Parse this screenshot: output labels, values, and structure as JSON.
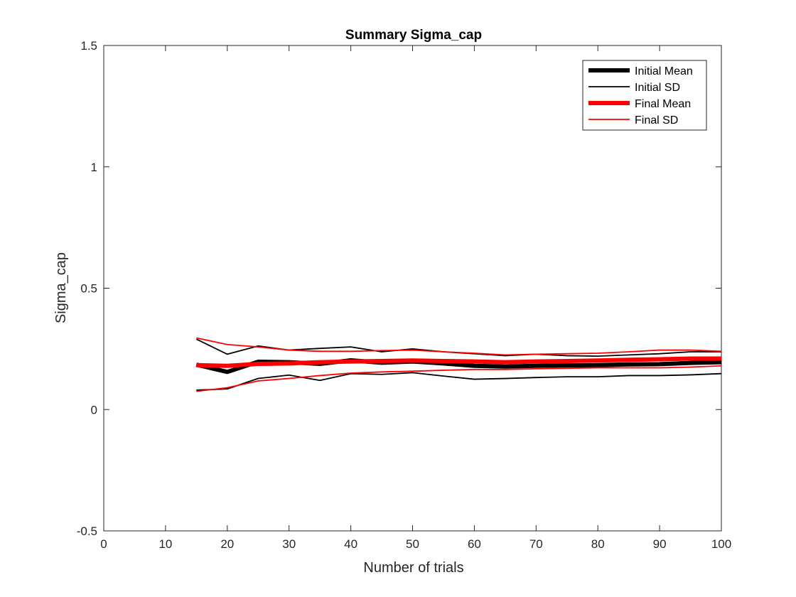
{
  "chart_data": {
    "type": "line",
    "title": "Summary Sigma_cap",
    "xlabel": "Number of trials",
    "ylabel": "Sigma_cap",
    "xlim": [
      0,
      100
    ],
    "ylim": [
      -0.5,
      1.5
    ],
    "xticks": [
      "0",
      "10",
      "20",
      "30",
      "40",
      "50",
      "60",
      "70",
      "80",
      "90",
      "100"
    ],
    "yticks": [
      "-0.5",
      "0",
      "0.5",
      "1",
      "1.5"
    ],
    "grid": false,
    "legend_position": "top-right",
    "x": [
      15,
      20,
      25,
      30,
      35,
      40,
      45,
      50,
      55,
      60,
      65,
      70,
      75,
      80,
      85,
      90,
      95,
      100
    ],
    "series": [
      {
        "name": "Initial Mean",
        "color": "#000000",
        "style": "thick",
        "values": [
          0.185,
          0.155,
          0.197,
          0.195,
          0.188,
          0.203,
          0.193,
          0.198,
          0.19,
          0.18,
          0.177,
          0.18,
          0.182,
          0.183,
          0.186,
          0.187,
          0.192,
          0.195
        ]
      },
      {
        "name": "Initial SD",
        "color": "#000000",
        "style": "thin",
        "values": [
          0.29,
          0.228,
          0.262,
          0.245,
          0.252,
          0.258,
          0.238,
          0.25,
          0.238,
          0.23,
          0.222,
          0.228,
          0.222,
          0.22,
          0.225,
          0.23,
          0.238,
          0.238
        ]
      },
      {
        "name": "Initial SD",
        "color": "#000000",
        "style": "thin",
        "values": [
          0.08,
          0.085,
          0.128,
          0.142,
          0.12,
          0.148,
          0.145,
          0.152,
          0.138,
          0.125,
          0.128,
          0.132,
          0.135,
          0.135,
          0.14,
          0.14,
          0.143,
          0.148
        ]
      },
      {
        "name": "Final Mean",
        "color": "#ff0000",
        "style": "thick",
        "values": [
          0.183,
          0.18,
          0.188,
          0.19,
          0.195,
          0.198,
          0.2,
          0.202,
          0.2,
          0.198,
          0.195,
          0.198,
          0.2,
          0.202,
          0.205,
          0.207,
          0.21,
          0.21
        ]
      },
      {
        "name": "Final SD",
        "color": "#ff0000",
        "style": "thin",
        "values": [
          0.295,
          0.268,
          0.258,
          0.245,
          0.24,
          0.24,
          0.243,
          0.245,
          0.238,
          0.232,
          0.225,
          0.228,
          0.23,
          0.232,
          0.238,
          0.245,
          0.245,
          0.24
        ]
      },
      {
        "name": "Final SD",
        "color": "#ff0000",
        "style": "thin",
        "values": [
          0.075,
          0.09,
          0.118,
          0.128,
          0.14,
          0.15,
          0.155,
          0.158,
          0.162,
          0.165,
          0.165,
          0.168,
          0.17,
          0.172,
          0.172,
          0.172,
          0.175,
          0.18
        ]
      }
    ],
    "legend": [
      {
        "label": "Initial Mean",
        "color": "#000000",
        "style": "thick"
      },
      {
        "label": "Initial SD",
        "color": "#000000",
        "style": "thin"
      },
      {
        "label": "Final Mean",
        "color": "#ff0000",
        "style": "thick"
      },
      {
        "label": "Final SD",
        "color": "#ff0000",
        "style": "thin"
      }
    ]
  }
}
